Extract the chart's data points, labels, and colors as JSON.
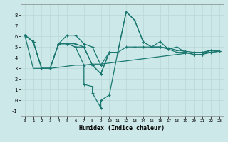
{
  "xlabel": "Humidex (Indice chaleur)",
  "bg_color": "#cce8e8",
  "line_color": "#1a7870",
  "grid_color": "#b8d8d8",
  "xlim": [
    -0.5,
    23.5
  ],
  "ylim": [
    -1.5,
    9.0
  ],
  "xticks": [
    0,
    1,
    2,
    3,
    4,
    5,
    6,
    7,
    8,
    9,
    10,
    11,
    12,
    13,
    14,
    15,
    16,
    17,
    18,
    19,
    20,
    21,
    22,
    23
  ],
  "yticks": [
    -1,
    0,
    1,
    2,
    3,
    4,
    5,
    6,
    7,
    8
  ],
  "line1_x": [
    0,
    1,
    2,
    3,
    4,
    5,
    6,
    7,
    8,
    9,
    10,
    11,
    12,
    13,
    14,
    15,
    16,
    17,
    18,
    19,
    20,
    21,
    22,
    23
  ],
  "line1_y": [
    6.1,
    5.5,
    3.0,
    3.0,
    5.3,
    6.1,
    6.1,
    5.3,
    5.0,
    3.3,
    4.5,
    4.5,
    8.3,
    7.5,
    5.5,
    5.0,
    5.5,
    4.8,
    5.0,
    4.5,
    4.3,
    4.3,
    4.7,
    4.6
  ],
  "line2_x": [
    0,
    1,
    2,
    3,
    4,
    5,
    6,
    7,
    8,
    9,
    10,
    11,
    12,
    13,
    14,
    15,
    16,
    17,
    18,
    19,
    20,
    21,
    22,
    23
  ],
  "line2_y": [
    6.1,
    5.5,
    3.0,
    3.0,
    5.3,
    5.3,
    5.3,
    5.0,
    3.3,
    2.5,
    4.5,
    4.5,
    8.3,
    7.5,
    5.5,
    5.0,
    5.0,
    4.8,
    4.5,
    4.5,
    4.3,
    4.3,
    4.5,
    4.6
  ],
  "line3_x": [
    6,
    7,
    7,
    8,
    8,
    9,
    9,
    10,
    11
  ],
  "line3_y": [
    5.0,
    3.3,
    1.5,
    1.3,
    0.7,
    -0.7,
    0.0,
    0.5,
    4.5
  ],
  "line4_x": [
    0,
    1,
    2,
    3,
    4,
    5,
    6,
    7,
    8,
    9,
    10,
    11,
    12,
    13,
    14,
    15,
    16,
    17,
    18,
    19,
    20,
    21,
    22,
    23
  ],
  "line4_y": [
    6.1,
    3.0,
    3.0,
    3.0,
    3.1,
    3.2,
    3.3,
    3.3,
    3.4,
    3.4,
    3.5,
    3.6,
    3.7,
    3.8,
    3.9,
    4.0,
    4.1,
    4.2,
    4.3,
    4.4,
    4.5,
    4.5,
    4.5,
    4.6
  ],
  "line5_x": [
    0,
    1,
    2,
    3,
    4,
    5,
    6,
    7,
    8,
    9,
    10,
    11,
    12,
    13,
    14,
    15,
    16,
    17,
    18,
    19,
    20,
    21,
    22,
    23
  ],
  "line5_y": [
    6.1,
    5.5,
    3.0,
    3.0,
    5.3,
    5.3,
    5.0,
    5.0,
    3.3,
    2.5,
    4.5,
    4.5,
    5.0,
    5.0,
    5.0,
    5.0,
    5.0,
    4.9,
    4.7,
    4.6,
    4.5,
    4.5,
    4.7,
    4.6
  ]
}
